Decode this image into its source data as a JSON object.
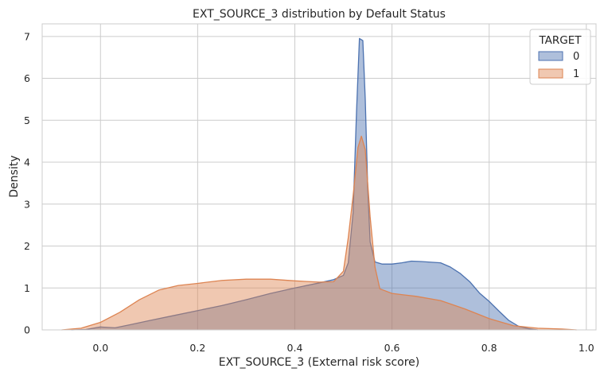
{
  "chart_data": {
    "type": "area",
    "title": "EXT_SOURCE_3 distribution by Default Status",
    "xlabel": "EXT_SOURCE_3 (External risk score)",
    "ylabel": "Density",
    "xlim": [
      -0.12,
      1.02
    ],
    "ylim": [
      0,
      7.3
    ],
    "xticks": [
      0.0,
      0.2,
      0.4,
      0.6,
      0.8,
      1.0
    ],
    "xtick_labels": [
      "0.0",
      "0.2",
      "0.4",
      "0.6",
      "0.8",
      "1.0"
    ],
    "yticks": [
      0,
      1,
      2,
      3,
      4,
      5,
      6,
      7
    ],
    "ytick_labels": [
      "0",
      "1",
      "2",
      "3",
      "4",
      "5",
      "6",
      "7"
    ],
    "grid": true,
    "legend": {
      "title": "TARGET",
      "position": "top-right"
    },
    "series": [
      {
        "name": "0",
        "color": "#4c72b0",
        "fill_opacity": 0.45,
        "points": [
          [
            -0.06,
            0
          ],
          [
            -0.03,
            0.01
          ],
          [
            0.0,
            0.07
          ],
          [
            0.03,
            0.05
          ],
          [
            0.06,
            0.12
          ],
          [
            0.1,
            0.22
          ],
          [
            0.15,
            0.34
          ],
          [
            0.2,
            0.46
          ],
          [
            0.25,
            0.58
          ],
          [
            0.3,
            0.72
          ],
          [
            0.35,
            0.87
          ],
          [
            0.4,
            1.0
          ],
          [
            0.45,
            1.12
          ],
          [
            0.48,
            1.2
          ],
          [
            0.5,
            1.3
          ],
          [
            0.51,
            1.6
          ],
          [
            0.52,
            2.8
          ],
          [
            0.527,
            5.2
          ],
          [
            0.533,
            6.95
          ],
          [
            0.54,
            6.9
          ],
          [
            0.545,
            5.5
          ],
          [
            0.55,
            3.4
          ],
          [
            0.555,
            2.1
          ],
          [
            0.565,
            1.62
          ],
          [
            0.58,
            1.57
          ],
          [
            0.6,
            1.57
          ],
          [
            0.62,
            1.6
          ],
          [
            0.64,
            1.64
          ],
          [
            0.66,
            1.63
          ],
          [
            0.7,
            1.6
          ],
          [
            0.72,
            1.5
          ],
          [
            0.74,
            1.35
          ],
          [
            0.76,
            1.15
          ],
          [
            0.78,
            0.88
          ],
          [
            0.8,
            0.68
          ],
          [
            0.82,
            0.45
          ],
          [
            0.84,
            0.23
          ],
          [
            0.86,
            0.09
          ],
          [
            0.88,
            0.03
          ],
          [
            0.9,
            0
          ]
        ]
      },
      {
        "name": "1",
        "color": "#dd8452",
        "fill_opacity": 0.45,
        "points": [
          [
            -0.08,
            0
          ],
          [
            -0.04,
            0.04
          ],
          [
            0.0,
            0.18
          ],
          [
            0.04,
            0.42
          ],
          [
            0.08,
            0.72
          ],
          [
            0.12,
            0.95
          ],
          [
            0.16,
            1.06
          ],
          [
            0.2,
            1.11
          ],
          [
            0.25,
            1.18
          ],
          [
            0.3,
            1.21
          ],
          [
            0.35,
            1.21
          ],
          [
            0.4,
            1.17
          ],
          [
            0.45,
            1.14
          ],
          [
            0.48,
            1.15
          ],
          [
            0.5,
            1.4
          ],
          [
            0.51,
            2.2
          ],
          [
            0.52,
            3.2
          ],
          [
            0.53,
            4.35
          ],
          [
            0.537,
            4.62
          ],
          [
            0.545,
            4.3
          ],
          [
            0.555,
            2.7
          ],
          [
            0.565,
            1.5
          ],
          [
            0.575,
            0.98
          ],
          [
            0.6,
            0.87
          ],
          [
            0.65,
            0.8
          ],
          [
            0.7,
            0.7
          ],
          [
            0.75,
            0.5
          ],
          [
            0.8,
            0.27
          ],
          [
            0.85,
            0.1
          ],
          [
            0.9,
            0.04
          ],
          [
            0.95,
            0.02
          ],
          [
            0.98,
            0
          ]
        ]
      }
    ]
  }
}
